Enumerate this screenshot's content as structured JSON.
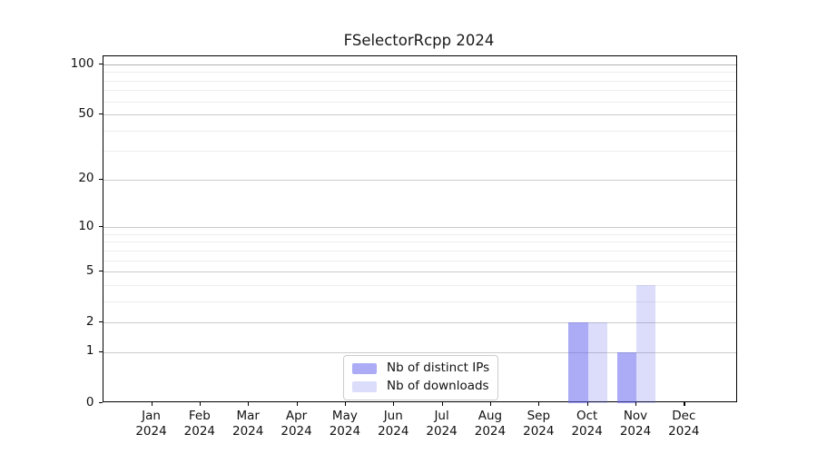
{
  "title": "FSelectorRcpp 2024",
  "legend": {
    "position": "lower center",
    "items": [
      {
        "label": "Nb of distinct IPs",
        "color": "#aaaaee",
        "rgba": "rgba(102,102,238,0.55)"
      },
      {
        "label": "Nb of downloads",
        "color": "#dcdcf8",
        "rgba": "rgba(102,102,238,0.23)"
      }
    ]
  },
  "chart_data": {
    "type": "bar",
    "title": "FSelectorRcpp 2024",
    "categories": [
      "Jan 2024",
      "Feb 2024",
      "Mar 2024",
      "Apr 2024",
      "May 2024",
      "Jun 2024",
      "Jul 2024",
      "Aug 2024",
      "Sep 2024",
      "Oct 2024",
      "Nov 2024",
      "Dec 2024"
    ],
    "series": [
      {
        "name": "Nb of distinct IPs",
        "color": "#aaaaee",
        "rgba": "rgba(102,102,238,0.55)",
        "values": [
          0,
          0,
          0,
          0,
          0,
          0,
          0,
          0,
          0,
          2,
          1,
          0
        ]
      },
      {
        "name": "Nb of downloads",
        "color": "#dcdcf8",
        "rgba": "rgba(102,102,238,0.23)",
        "values": [
          0,
          0,
          0,
          0,
          0,
          0,
          0,
          0,
          0,
          2,
          4,
          0
        ]
      }
    ],
    "xlabel": "",
    "ylabel": "",
    "yscale": "log1p",
    "yticks": [
      0,
      1,
      2,
      5,
      10,
      20,
      50,
      100
    ],
    "yticks_minor": [
      3,
      4,
      6,
      7,
      8,
      9,
      30,
      40,
      60,
      70,
      80,
      90
    ],
    "ylim": [
      0,
      112
    ],
    "grid": true,
    "gridline_color_major": "#cbcbcb",
    "gridline_color_top": "#b3b3b3",
    "gridline_color_minor": "#ededed",
    "legend_position": "lower center"
  }
}
